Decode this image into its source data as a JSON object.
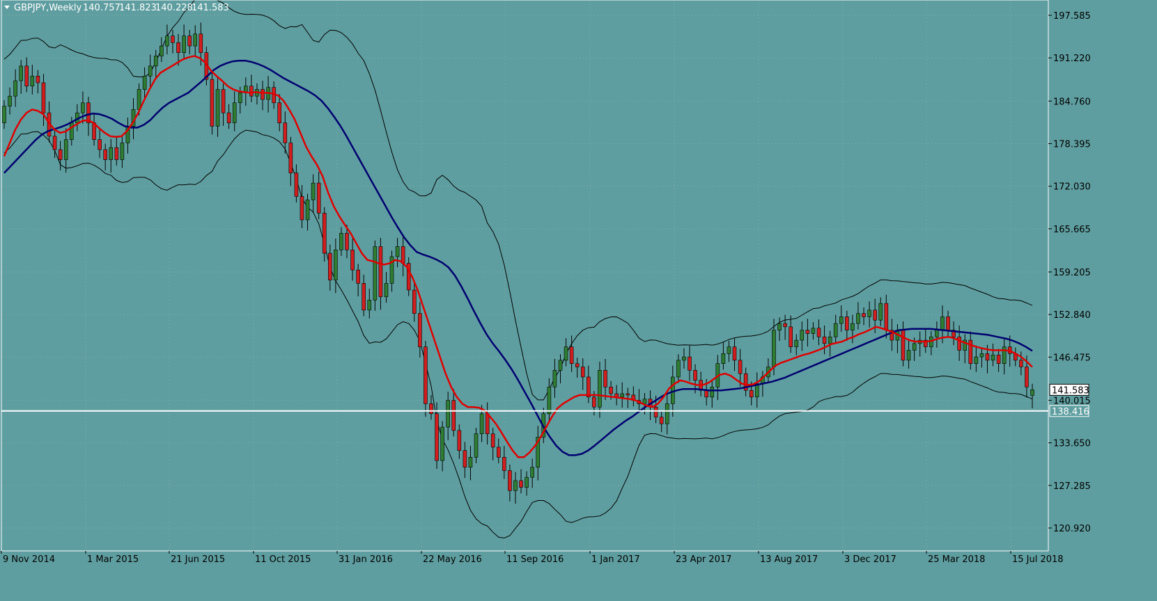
{
  "window": {
    "symbol_timeframe": "GBPJPY,Weekly",
    "ohlc": [
      "140.757",
      "141.823",
      "140.228",
      "141.583"
    ]
  },
  "colors": {
    "background": "#5f9ea0",
    "bull_candle": "#2e7d32",
    "bear_candle": "#d21e1e",
    "wick": "#000000",
    "ma_fast": "#e00000",
    "ma_slow": "#000070",
    "bollinger": "#000000",
    "hline": "#ffffff",
    "grid": "#6fa6a8"
  },
  "chart_data": {
    "type": "candlestick",
    "title": "",
    "y_axis_labels": [
      "197.585",
      "191.220",
      "184.760",
      "178.395",
      "172.030",
      "165.665",
      "159.205",
      "152.840",
      "146.475",
      "140.015",
      "133.650",
      "127.285",
      "120.920"
    ],
    "x_axis_labels": [
      "9 Nov 2014",
      "1 Mar 2015",
      "21 Jun 2015",
      "11 Oct 2015",
      "31 Jan 2016",
      "22 May 2016",
      "11 Sep 2016",
      "1 Jan 2017",
      "23 Apr 2017",
      "13 Aug 2017",
      "3 Dec 2017",
      "25 Mar 2018",
      "15 Jul 2018"
    ],
    "ylim": [
      120.0,
      198.5
    ],
    "current_price": {
      "value": 141.583,
      "label": "141.583"
    },
    "horizontal_line": {
      "value": 138.416,
      "label": "138.416"
    },
    "candles": [
      {
        "o": 181.5,
        "c": 184.0
      },
      {
        "o": 184.0,
        "c": 185.5
      },
      {
        "o": 185.5,
        "c": 187.8
      },
      {
        "o": 187.8,
        "c": 190.0
      },
      {
        "o": 190.0,
        "c": 187.0
      },
      {
        "o": 187.0,
        "c": 188.5
      },
      {
        "o": 188.5,
        "c": 187.5
      },
      {
        "o": 187.5,
        "c": 183.0
      },
      {
        "o": 183.0,
        "c": 179.5
      },
      {
        "o": 179.5,
        "c": 177.5
      },
      {
        "o": 177.5,
        "c": 176.0
      },
      {
        "o": 176.0,
        "c": 179.0
      },
      {
        "o": 179.0,
        "c": 181.5
      },
      {
        "o": 181.5,
        "c": 183.0
      },
      {
        "o": 183.0,
        "c": 184.5
      },
      {
        "o": 184.5,
        "c": 181.5
      },
      {
        "o": 181.5,
        "c": 179.0
      },
      {
        "o": 179.0,
        "c": 177.5
      },
      {
        "o": 177.5,
        "c": 176.0
      },
      {
        "o": 176.0,
        "c": 177.8
      },
      {
        "o": 177.8,
        "c": 176.0
      },
      {
        "o": 176.0,
        "c": 178.5
      },
      {
        "o": 178.5,
        "c": 181.0
      },
      {
        "o": 181.0,
        "c": 183.5
      },
      {
        "o": 183.5,
        "c": 186.5
      },
      {
        "o": 186.5,
        "c": 188.5
      },
      {
        "o": 188.5,
        "c": 190.0
      },
      {
        "o": 190.0,
        "c": 191.5
      },
      {
        "o": 191.5,
        "c": 193.0
      },
      {
        "o": 193.0,
        "c": 194.5
      },
      {
        "o": 194.5,
        "c": 193.5
      },
      {
        "o": 193.5,
        "c": 192.0
      },
      {
        "o": 192.0,
        "c": 194.5
      },
      {
        "o": 194.5,
        "c": 193.0
      },
      {
        "o": 193.0,
        "c": 194.8
      },
      {
        "o": 194.8,
        "c": 192.0
      },
      {
        "o": 192.0,
        "c": 188.0
      },
      {
        "o": 188.0,
        "c": 181.0
      },
      {
        "o": 181.0,
        "c": 186.5
      },
      {
        "o": 186.5,
        "c": 183.0
      },
      {
        "o": 183.0,
        "c": 181.5
      },
      {
        "o": 181.5,
        "c": 184.5
      },
      {
        "o": 184.5,
        "c": 186.0
      },
      {
        "o": 186.0,
        "c": 187.0
      },
      {
        "o": 187.0,
        "c": 185.5
      },
      {
        "o": 185.5,
        "c": 186.5
      },
      {
        "o": 186.5,
        "c": 185.0
      },
      {
        "o": 185.0,
        "c": 186.8
      },
      {
        "o": 186.8,
        "c": 184.5
      },
      {
        "o": 184.5,
        "c": 181.5
      },
      {
        "o": 181.5,
        "c": 178.5
      },
      {
        "o": 178.5,
        "c": 174.0
      },
      {
        "o": 174.0,
        "c": 170.5
      },
      {
        "o": 170.5,
        "c": 167.0
      },
      {
        "o": 167.0,
        "c": 170.0
      },
      {
        "o": 170.0,
        "c": 172.5
      },
      {
        "o": 172.5,
        "c": 168.0
      },
      {
        "o": 168.0,
        "c": 162.0
      },
      {
        "o": 162.0,
        "c": 158.0
      },
      {
        "o": 158.0,
        "c": 162.5
      },
      {
        "o": 162.5,
        "c": 165.0
      },
      {
        "o": 165.0,
        "c": 162.5
      },
      {
        "o": 162.5,
        "c": 159.5
      },
      {
        "o": 159.5,
        "c": 157.5
      },
      {
        "o": 157.5,
        "c": 153.5
      },
      {
        "o": 153.5,
        "c": 155.0
      },
      {
        "o": 155.0,
        "c": 163.0
      },
      {
        "o": 163.0,
        "c": 155.5
      },
      {
        "o": 155.5,
        "c": 157.5
      },
      {
        "o": 157.5,
        "c": 161.5
      },
      {
        "o": 161.5,
        "c": 163.0
      },
      {
        "o": 163.0,
        "c": 160.5
      },
      {
        "o": 160.5,
        "c": 156.5
      },
      {
        "o": 156.5,
        "c": 153.0
      },
      {
        "o": 153.0,
        "c": 148.0
      },
      {
        "o": 148.0,
        "c": 139.5
      },
      {
        "o": 139.5,
        "c": 138.0
      },
      {
        "o": 138.0,
        "c": 131.0
      },
      {
        "o": 131.0,
        "c": 136.0
      },
      {
        "o": 136.0,
        "c": 140.0
      },
      {
        "o": 140.0,
        "c": 135.5
      },
      {
        "o": 135.5,
        "c": 132.5
      },
      {
        "o": 132.5,
        "c": 130.0
      },
      {
        "o": 130.0,
        "c": 131.5
      },
      {
        "o": 131.5,
        "c": 135.0
      },
      {
        "o": 135.0,
        "c": 138.0
      },
      {
        "o": 138.0,
        "c": 135.0
      },
      {
        "o": 135.0,
        "c": 133.0
      },
      {
        "o": 133.0,
        "c": 131.5
      },
      {
        "o": 131.5,
        "c": 129.5
      },
      {
        "o": 129.5,
        "c": 126.5
      },
      {
        "o": 126.5,
        "c": 128.0
      },
      {
        "o": 128.0,
        "c": 127.0
      },
      {
        "o": 127.0,
        "c": 128.5
      },
      {
        "o": 128.5,
        "c": 130.0
      },
      {
        "o": 130.0,
        "c": 134.5
      },
      {
        "o": 134.5,
        "c": 138.0
      },
      {
        "o": 138.0,
        "c": 142.0
      },
      {
        "o": 142.0,
        "c": 144.5
      },
      {
        "o": 144.5,
        "c": 146.0
      },
      {
        "o": 146.0,
        "c": 148.0
      },
      {
        "o": 148.0,
        "c": 145.5
      },
      {
        "o": 145.5,
        "c": 145.0
      },
      {
        "o": 145.0,
        "c": 143.5
      },
      {
        "o": 143.5,
        "c": 140.5
      },
      {
        "o": 140.5,
        "c": 139.0
      },
      {
        "o": 139.0,
        "c": 144.5
      },
      {
        "o": 144.5,
        "c": 142.0
      },
      {
        "o": 142.0,
        "c": 141.0
      },
      {
        "o": 141.0,
        "c": 140.5
      },
      {
        "o": 140.5,
        "c": 141.0
      },
      {
        "o": 141.0,
        "c": 140.8
      },
      {
        "o": 140.8,
        "c": 140.0
      },
      {
        "o": 140.0,
        "c": 139.5
      },
      {
        "o": 139.5,
        "c": 140.2
      },
      {
        "o": 140.2,
        "c": 139.0
      },
      {
        "o": 139.0,
        "c": 137.5
      },
      {
        "o": 137.5,
        "c": 136.5
      },
      {
        "o": 136.5,
        "c": 139.5
      },
      {
        "o": 139.5,
        "c": 143.5
      },
      {
        "o": 143.5,
        "c": 146.0
      },
      {
        "o": 146.0,
        "c": 146.5
      },
      {
        "o": 146.5,
        "c": 144.5
      },
      {
        "o": 144.5,
        "c": 143.0
      },
      {
        "o": 143.0,
        "c": 141.5
      },
      {
        "o": 141.5,
        "c": 140.5
      },
      {
        "o": 140.5,
        "c": 142.0
      },
      {
        "o": 142.0,
        "c": 145.5
      },
      {
        "o": 145.5,
        "c": 147.0
      },
      {
        "o": 147.0,
        "c": 148.0
      },
      {
        "o": 148.0,
        "c": 146.0
      },
      {
        "o": 146.0,
        "c": 144.0
      },
      {
        "o": 144.0,
        "c": 141.5
      },
      {
        "o": 141.5,
        "c": 140.5
      },
      {
        "o": 140.5,
        "c": 142.5
      },
      {
        "o": 142.5,
        "c": 143.5
      },
      {
        "o": 143.5,
        "c": 145.0
      },
      {
        "o": 145.0,
        "c": 150.5
      },
      {
        "o": 150.5,
        "c": 151.5
      },
      {
        "o": 151.5,
        "c": 151.0
      },
      {
        "o": 151.0,
        "c": 148.0
      },
      {
        "o": 148.0,
        "c": 149.0
      },
      {
        "o": 149.0,
        "c": 150.5
      },
      {
        "o": 150.5,
        "c": 150.0
      },
      {
        "o": 150.0,
        "c": 150.8
      },
      {
        "o": 150.8,
        "c": 149.5
      },
      {
        "o": 149.5,
        "c": 148.5
      },
      {
        "o": 148.5,
        "c": 149.5
      },
      {
        "o": 149.5,
        "c": 151.5
      },
      {
        "o": 151.5,
        "c": 152.5
      },
      {
        "o": 152.5,
        "c": 150.5
      },
      {
        "o": 150.5,
        "c": 151.5
      },
      {
        "o": 151.5,
        "c": 153.0
      },
      {
        "o": 153.0,
        "c": 152.5
      },
      {
        "o": 152.5,
        "c": 153.5
      },
      {
        "o": 153.5,
        "c": 152.0
      },
      {
        "o": 152.0,
        "c": 154.5
      },
      {
        "o": 154.5,
        "c": 150.5
      },
      {
        "o": 150.5,
        "c": 149.0
      },
      {
        "o": 149.0,
        "c": 150.5
      },
      {
        "o": 150.5,
        "c": 146.0
      },
      {
        "o": 146.0,
        "c": 147.5
      },
      {
        "o": 147.5,
        "c": 148.5
      },
      {
        "o": 148.5,
        "c": 149.0
      },
      {
        "o": 149.0,
        "c": 148.0
      },
      {
        "o": 148.0,
        "c": 149.5
      },
      {
        "o": 149.5,
        "c": 150.5
      },
      {
        "o": 150.5,
        "c": 152.5
      },
      {
        "o": 152.5,
        "c": 150.5
      },
      {
        "o": 150.5,
        "c": 149.5
      },
      {
        "o": 149.5,
        "c": 147.5
      },
      {
        "o": 147.5,
        "c": 149.0
      },
      {
        "o": 149.0,
        "c": 145.5
      },
      {
        "o": 145.5,
        "c": 146.5
      },
      {
        "o": 146.5,
        "c": 147.0
      },
      {
        "o": 147.0,
        "c": 146.0
      },
      {
        "o": 146.0,
        "c": 146.8
      },
      {
        "o": 146.8,
        "c": 145.5
      },
      {
        "o": 145.5,
        "c": 148.0
      },
      {
        "o": 148.0,
        "c": 147.0
      },
      {
        "o": 147.0,
        "c": 146.0
      },
      {
        "o": 146.0,
        "c": 145.0
      },
      {
        "o": 145.0,
        "c": 142.0
      },
      {
        "o": 140.757,
        "c": 141.583
      }
    ],
    "ma_fast_values": [
      176.5,
      178.5,
      180.5,
      182.0,
      183.0,
      183.5,
      183.3,
      182.8,
      181.5,
      180.5,
      180.0,
      180.2,
      180.8,
      181.3,
      181.8,
      181.9,
      181.5,
      180.7,
      180.0,
      179.5,
      179.4,
      179.5,
      180.3,
      181.5,
      183.0,
      184.8,
      186.5,
      188.0,
      189.0,
      189.5,
      190.0,
      190.5,
      191.0,
      191.3,
      191.5,
      191.2,
      190.5,
      189.3,
      188.5,
      187.8,
      187.0,
      186.5,
      186.2,
      186.1,
      186.0,
      186.1,
      186.0,
      186.0,
      185.9,
      185.6,
      184.8,
      183.5,
      182.0,
      180.0,
      178.0,
      176.5,
      175.2,
      173.5,
      171.0,
      169.0,
      167.5,
      166.2,
      165.0,
      163.5,
      162.0,
      161.0,
      160.8,
      160.5,
      160.3,
      160.5,
      161.0,
      160.8,
      160.0,
      158.5,
      156.5,
      154.0,
      151.5,
      149.0,
      146.5,
      144.0,
      142.0,
      140.5,
      139.5,
      139.0,
      139.0,
      138.9,
      138.5,
      137.5,
      136.5,
      135.2,
      133.8,
      132.5,
      131.5,
      131.5,
      132.2,
      133.2,
      134.5,
      136.0,
      137.5,
      138.8,
      139.5,
      140.0,
      140.5,
      140.8,
      140.8,
      140.8,
      140.8,
      140.7,
      140.6,
      140.5,
      140.4,
      140.3,
      140.2,
      140.0,
      139.6,
      139.2,
      139.0,
      139.5,
      140.5,
      141.8,
      142.5,
      143.0,
      142.8,
      142.5,
      142.3,
      142.3,
      142.6,
      143.2,
      143.8,
      144.0,
      143.7,
      143.1,
      142.5,
      142.3,
      142.4,
      142.8,
      143.6,
      144.4,
      145.2,
      145.6,
      145.9,
      146.2,
      146.5,
      146.8,
      147.0,
      147.3,
      147.6,
      148.0,
      148.4,
      148.6,
      148.8,
      149.2,
      149.5,
      149.9,
      150.2,
      150.6,
      151.0,
      150.8,
      150.5,
      150.2,
      149.8,
      149.4,
      149.0,
      148.8,
      148.8,
      148.8,
      148.9,
      149.2,
      149.4,
      149.5,
      149.3,
      148.9,
      148.6,
      148.3,
      148.0,
      147.8,
      147.6,
      147.5,
      147.5,
      147.5,
      147.4,
      147.0,
      146.5,
      145.8,
      145.0
    ],
    "ma_slow_values": [
      174.0,
      175.0,
      176.0,
      177.0,
      178.0,
      179.0,
      179.8,
      180.3,
      180.6,
      180.9,
      181.3,
      181.8,
      182.3,
      182.7,
      182.9,
      182.8,
      182.5,
      182.1,
      181.5,
      181.0,
      180.8,
      180.8,
      181.2,
      181.9,
      182.9,
      183.8,
      184.5,
      185.0,
      185.5,
      186.0,
      186.8,
      187.6,
      188.5,
      189.4,
      190.0,
      190.4,
      190.7,
      190.8,
      190.8,
      190.6,
      190.3,
      189.9,
      189.4,
      188.8,
      188.2,
      187.7,
      187.2,
      186.7,
      186.2,
      185.6,
      184.8,
      183.7,
      182.4,
      181.0,
      179.4,
      177.7,
      176.0,
      174.3,
      172.6,
      170.9,
      169.2,
      167.5,
      165.9,
      164.4,
      163.2,
      162.2,
      161.8,
      161.5,
      161.1,
      160.6,
      159.9,
      158.7,
      157.1,
      155.3,
      153.4,
      151.6,
      149.9,
      148.5,
      147.3,
      146.0,
      144.6,
      143.0,
      141.3,
      139.6,
      137.8,
      136.0,
      134.5,
      133.2,
      132.3,
      131.8,
      131.8,
      132.0,
      132.5,
      133.2,
      134.0,
      134.8,
      135.6,
      136.3,
      137.0,
      137.6,
      138.3,
      139.0,
      139.6,
      140.2,
      140.8,
      141.2,
      141.5,
      141.7,
      141.7,
      141.7,
      141.6,
      141.5,
      141.5,
      141.5,
      141.6,
      141.7,
      141.8,
      142.0,
      142.2,
      142.4,
      142.6,
      142.8,
      143.1,
      143.4,
      143.8,
      144.2,
      144.6,
      145.0,
      145.4,
      145.8,
      146.2,
      146.6,
      147.0,
      147.4,
      147.8,
      148.2,
      148.6,
      149.0,
      149.4,
      149.8,
      150.2,
      150.5,
      150.6,
      150.7,
      150.7,
      150.7,
      150.7,
      150.6,
      150.5,
      150.4,
      150.3,
      150.2,
      150.1,
      150.0,
      149.9,
      149.8,
      149.6,
      149.4,
      149.2,
      148.9,
      148.5,
      148.0,
      147.4
    ]
  }
}
